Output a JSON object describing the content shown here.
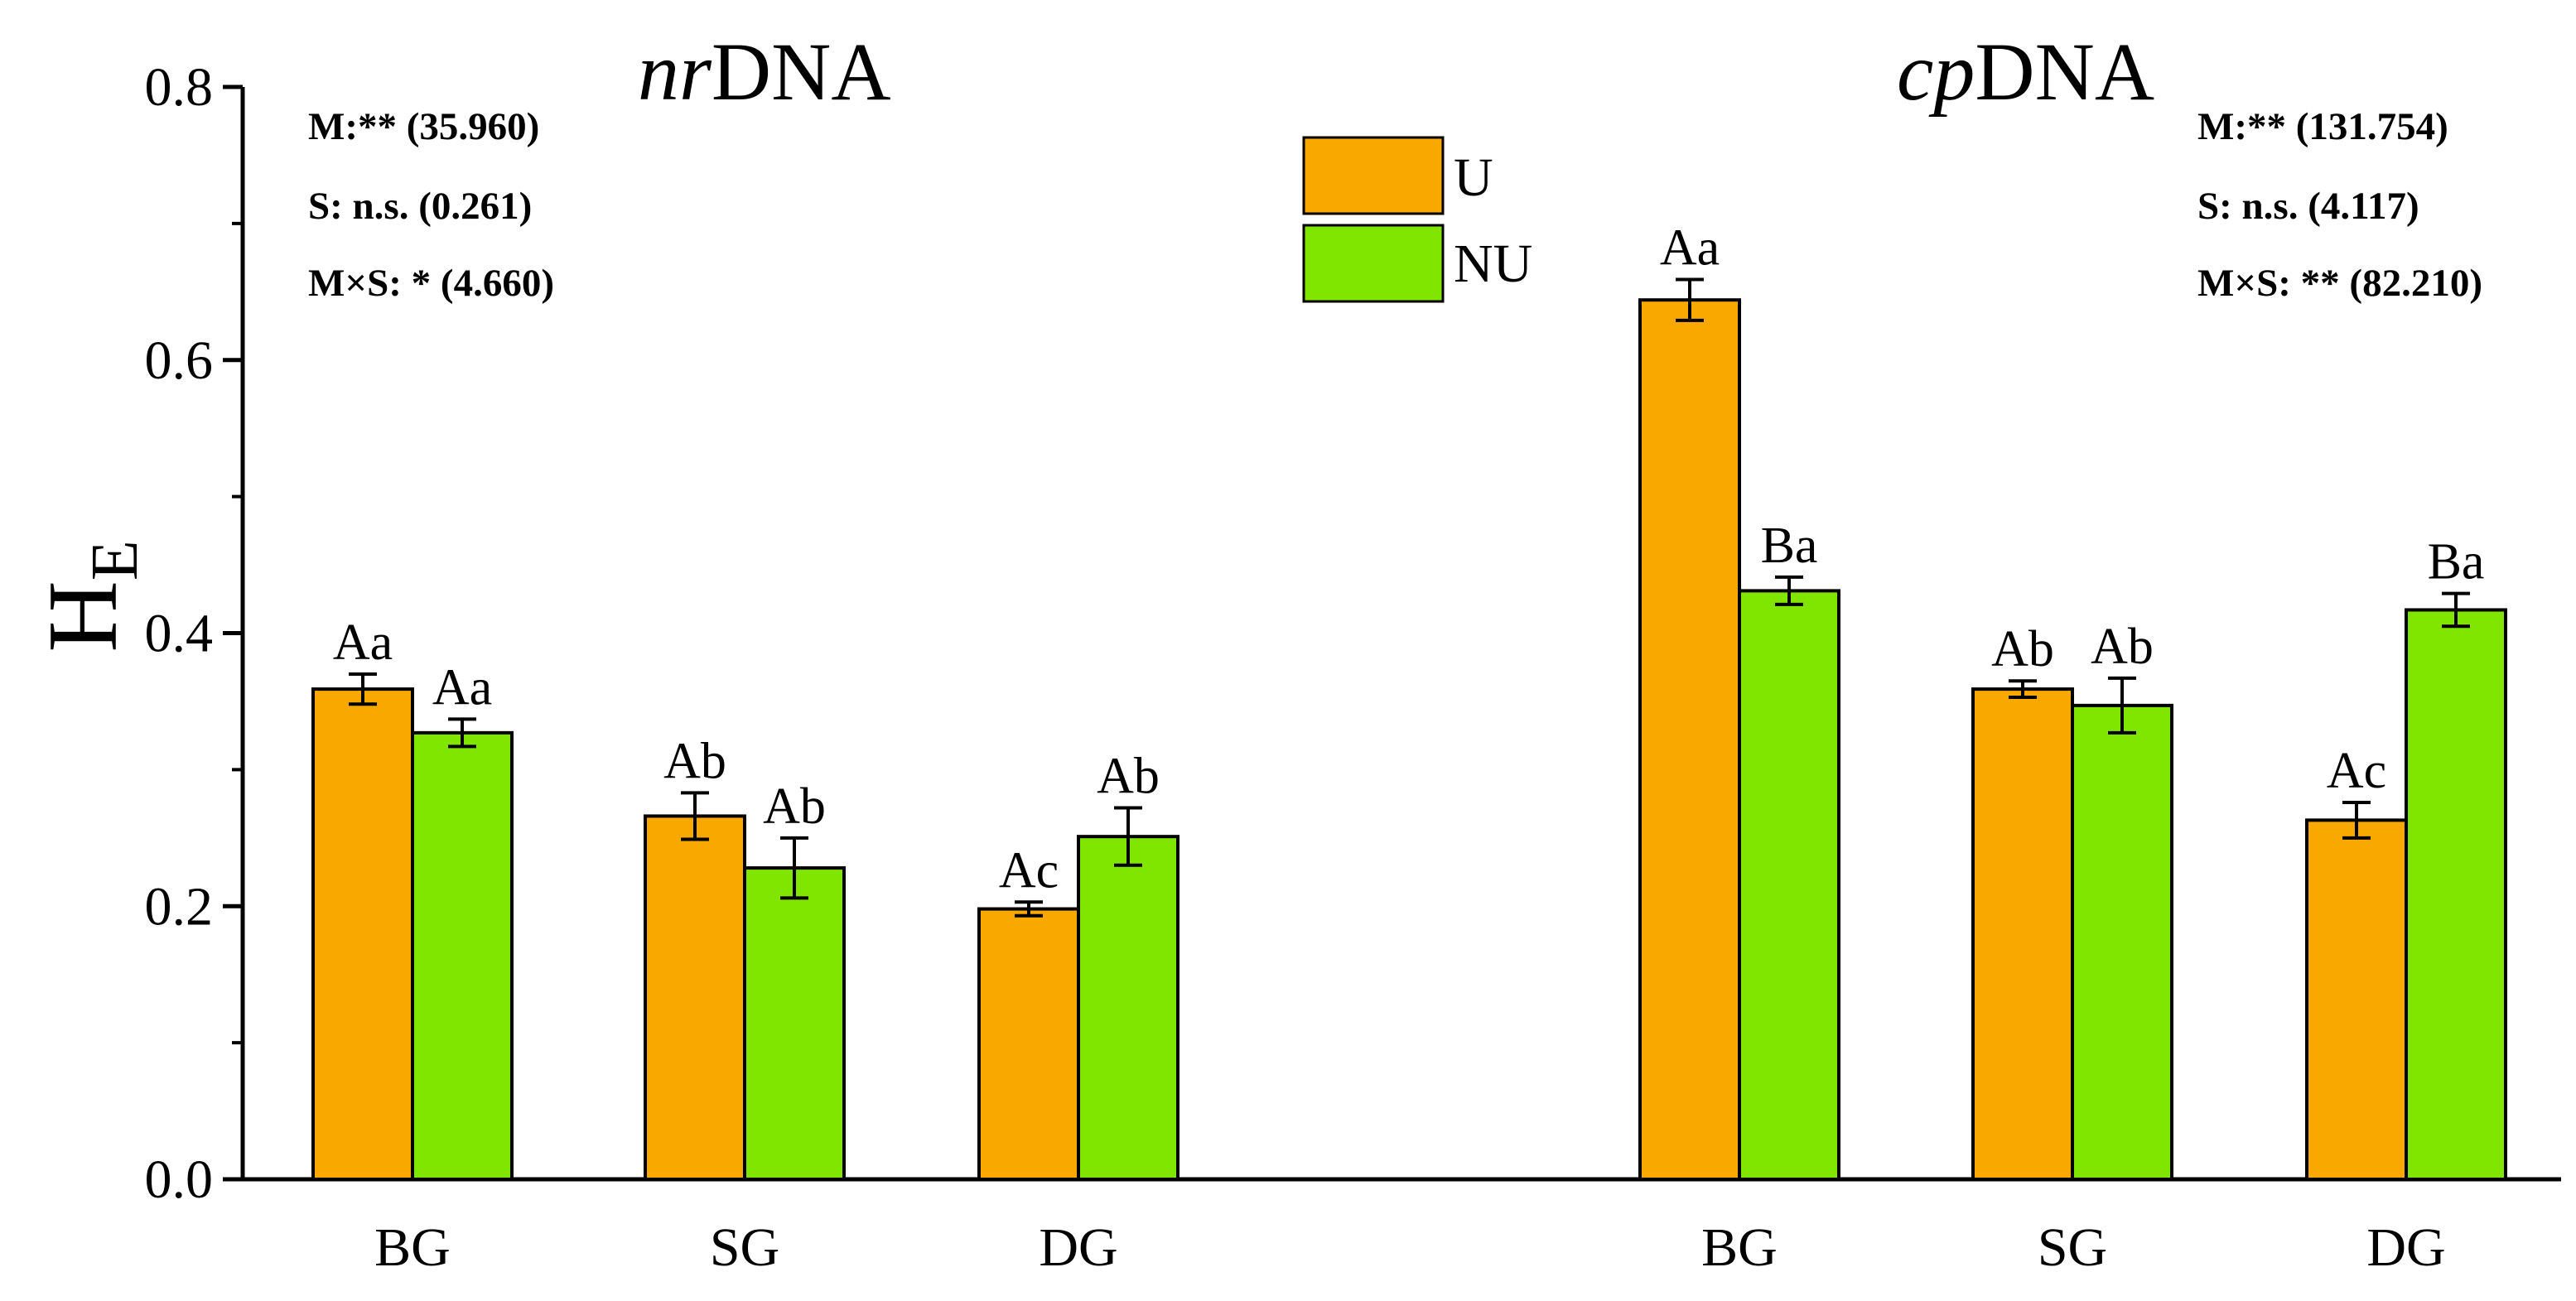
{
  "chart_data": {
    "type": "bar",
    "ylabel": "H",
    "ylabel_sub": "E",
    "ylim": [
      0,
      0.8
    ],
    "yticks": [
      "0.0",
      "0.2",
      "0.4",
      "0.6",
      "0.8"
    ],
    "legend": {
      "position": "top-center",
      "entries": [
        {
          "name": "U",
          "color": "#F9A800"
        },
        {
          "name": "NU",
          "color": "#80E600"
        }
      ]
    },
    "panels": [
      {
        "title_italic": "nr",
        "title": "DNA",
        "stats": [
          "M:** (35.960)",
          "S: n.s. (0.261)",
          "M×S: * (4.660)"
        ],
        "categories": [
          "BG",
          "SG",
          "DG"
        ],
        "series": [
          {
            "name": "U",
            "values": [
              0.359,
              0.266,
              0.198
            ],
            "errors": [
              0.011,
              0.017,
              0.005
            ],
            "labels": [
              "Aa",
              "Ab",
              "Ac"
            ]
          },
          {
            "name": "NU",
            "values": [
              0.327,
              0.228,
              0.251
            ],
            "errors": [
              0.01,
              0.022,
              0.021
            ],
            "labels": [
              "Aa",
              "Ab",
              "Ab"
            ]
          }
        ]
      },
      {
        "title_italic": "cp",
        "title": "DNA",
        "stats": [
          "M:** (131.754)",
          "S: n.s. (4.117)",
          "M×S: ** (82.210)"
        ],
        "categories": [
          "BG",
          "SG",
          "DG"
        ],
        "series": [
          {
            "name": "U",
            "values": [
              0.644,
              0.359,
              0.263
            ],
            "errors": [
              0.015,
              0.006,
              0.013
            ],
            "labels": [
              "Aa",
              "Ab",
              "Ac"
            ]
          },
          {
            "name": "NU",
            "values": [
              0.431,
              0.347,
              0.417
            ],
            "errors": [
              0.01,
              0.02,
              0.012
            ],
            "labels": [
              "Ba",
              "Ab",
              "Ba"
            ]
          }
        ]
      }
    ]
  }
}
